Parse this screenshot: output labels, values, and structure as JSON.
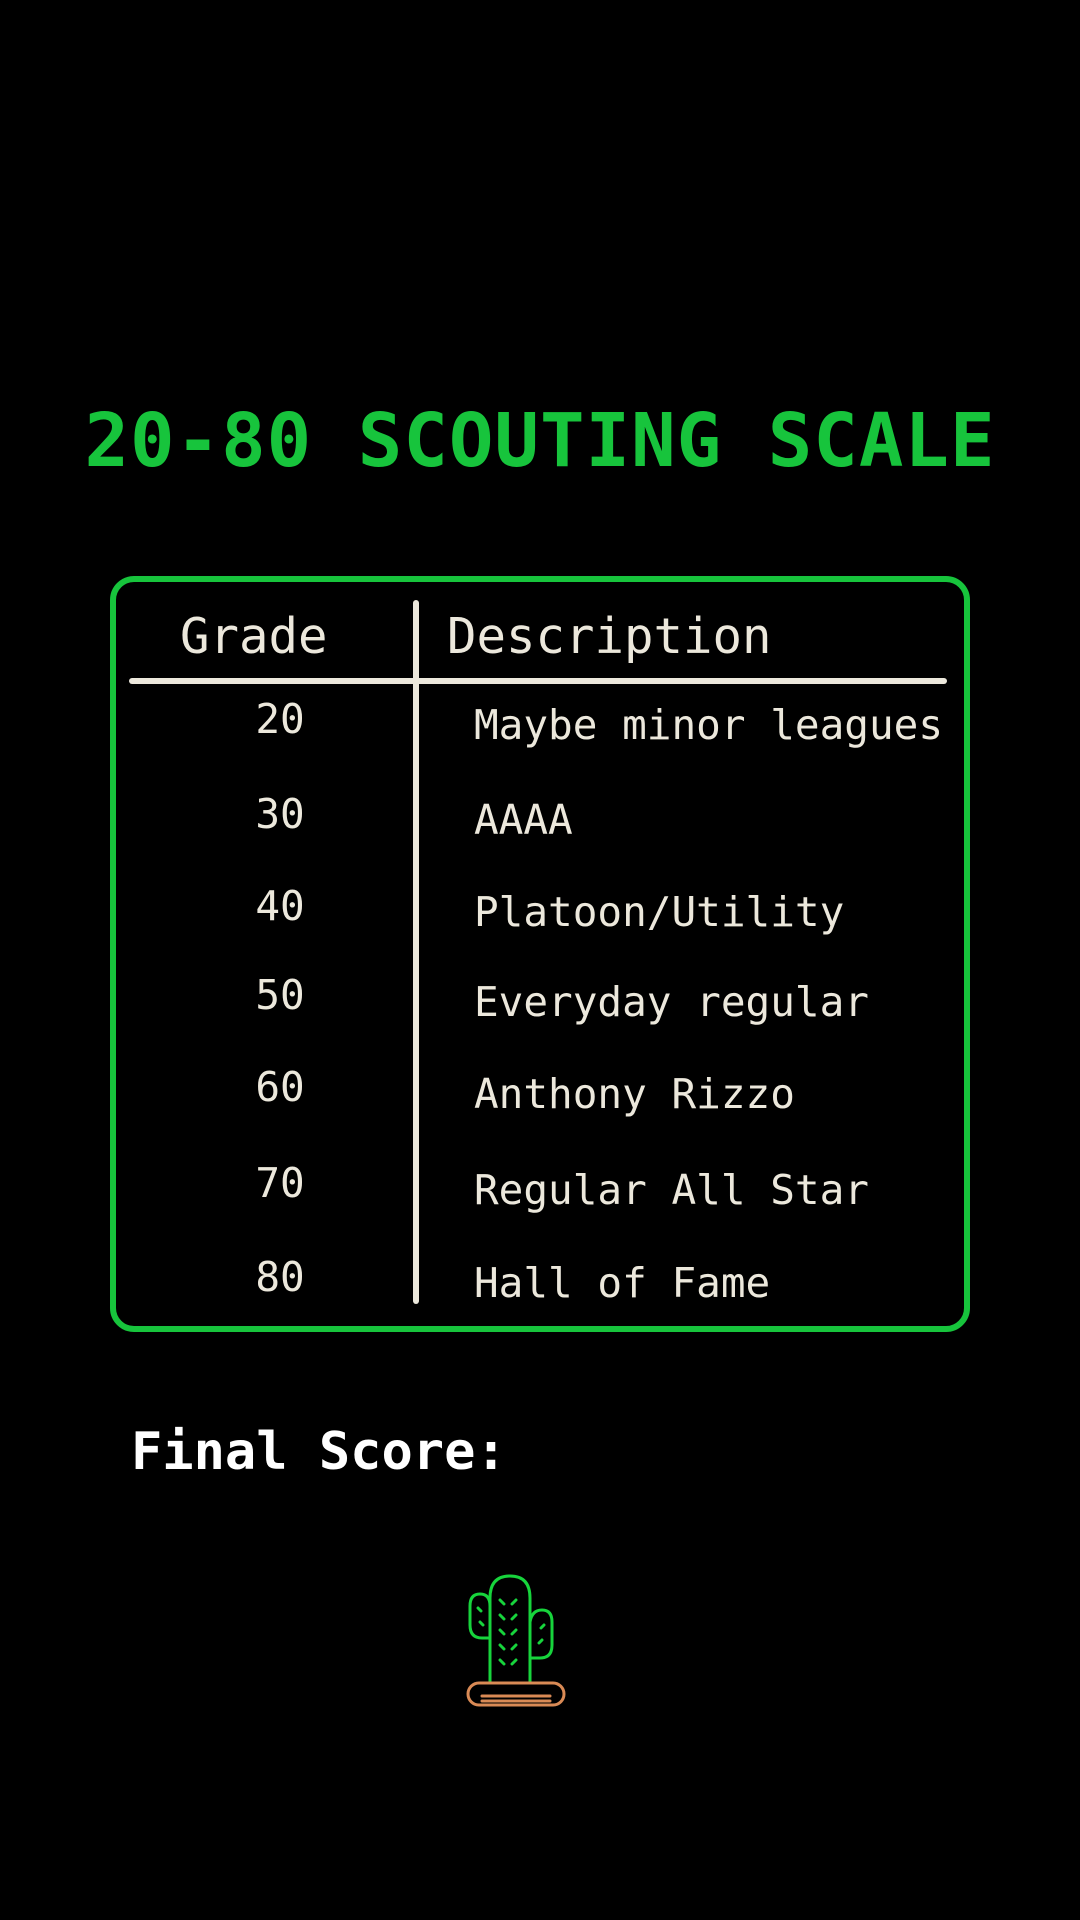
{
  "title": "20-80 SCOUTING SCALE",
  "table": {
    "headers": {
      "grade": "Grade",
      "description": "Description"
    },
    "rows": [
      {
        "grade": "20",
        "description": "Maybe minor leagues"
      },
      {
        "grade": "30",
        "description": "AAAA"
      },
      {
        "grade": "40",
        "description": "Platoon/Utility"
      },
      {
        "grade": "50",
        "description": "Everyday regular"
      },
      {
        "grade": "60",
        "description": "Anthony Rizzo"
      },
      {
        "grade": "70",
        "description": "Regular All Star"
      },
      {
        "grade": "80",
        "description": "Hall of Fame"
      }
    ]
  },
  "final_score_label": "Final Score:",
  "icon": "cactus-icon",
  "colors": {
    "accent": "#17c43c",
    "text": "#ece8dc",
    "pot": "#d98a55"
  }
}
